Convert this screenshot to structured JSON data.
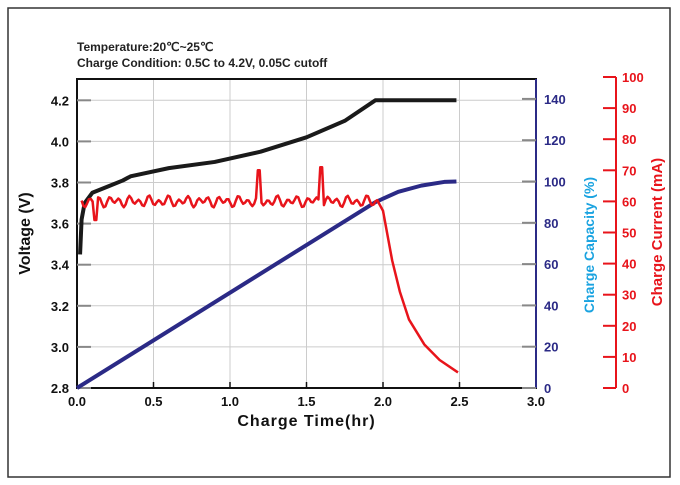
{
  "chart_data": {
    "type": "line",
    "notes": [
      "Temperature:20℃~25℃",
      "Charge Condition: 0.5C to 4.2V, 0.05C cutoff"
    ],
    "xlabel": "Charge Time(hr)",
    "xlim": [
      0,
      3.0
    ],
    "xticks": [
      "0.0",
      "0.5",
      "1.0",
      "1.5",
      "2.0",
      "2.5",
      "3.0"
    ],
    "grid": true,
    "axes": {
      "voltage": {
        "label": "Voltage (V)",
        "lim": [
          2.8,
          4.3
        ],
        "ticks": [
          "2.8",
          "3.0",
          "3.2",
          "3.4",
          "3.6",
          "3.8",
          "4.0",
          "4.2"
        ],
        "color": "#000000"
      },
      "capacity": {
        "label": "Charge Capacity (%)",
        "lim": [
          0,
          150
        ],
        "ticks": [
          "0",
          "20",
          "40",
          "60",
          "80",
          "100",
          "120",
          "140"
        ],
        "color": "#2b2a86",
        "label_color": "#1aa3e0"
      },
      "current": {
        "label": "Charge Current (mA)",
        "lim": [
          0,
          100
        ],
        "ticks": [
          "0",
          "10",
          "20",
          "30",
          "40",
          "50",
          "60",
          "70",
          "80",
          "90",
          "100"
        ],
        "color": "#e8141b"
      }
    },
    "series": [
      {
        "axis": "voltage",
        "color": "#1a1a1a",
        "x": [
          0.02,
          0.03,
          0.05,
          0.1,
          0.2,
          0.3,
          0.35,
          0.6,
          0.9,
          1.2,
          1.5,
          1.75,
          1.95,
          2.48
        ],
        "y": [
          3.45,
          3.62,
          3.7,
          3.75,
          3.78,
          3.81,
          3.83,
          3.87,
          3.9,
          3.95,
          4.02,
          4.1,
          4.2,
          4.2
        ]
      },
      {
        "axis": "capacity",
        "color": "#2b2a86",
        "x": [
          0,
          1.95,
          2.1,
          2.25,
          2.4,
          2.48
        ],
        "y": [
          0,
          90,
          95,
          98,
          99.8,
          100
        ]
      },
      {
        "axis": "current",
        "color": "#e8141b",
        "x": [
          0,
          0.1,
          0.5,
          1.0,
          1.5,
          1.97,
          2.0,
          2.06,
          2.11,
          2.17,
          2.27,
          2.37,
          2.49
        ],
        "y": [
          60,
          60,
          60,
          60,
          60,
          60,
          57,
          41,
          31,
          22,
          14,
          9,
          5
        ]
      }
    ]
  }
}
